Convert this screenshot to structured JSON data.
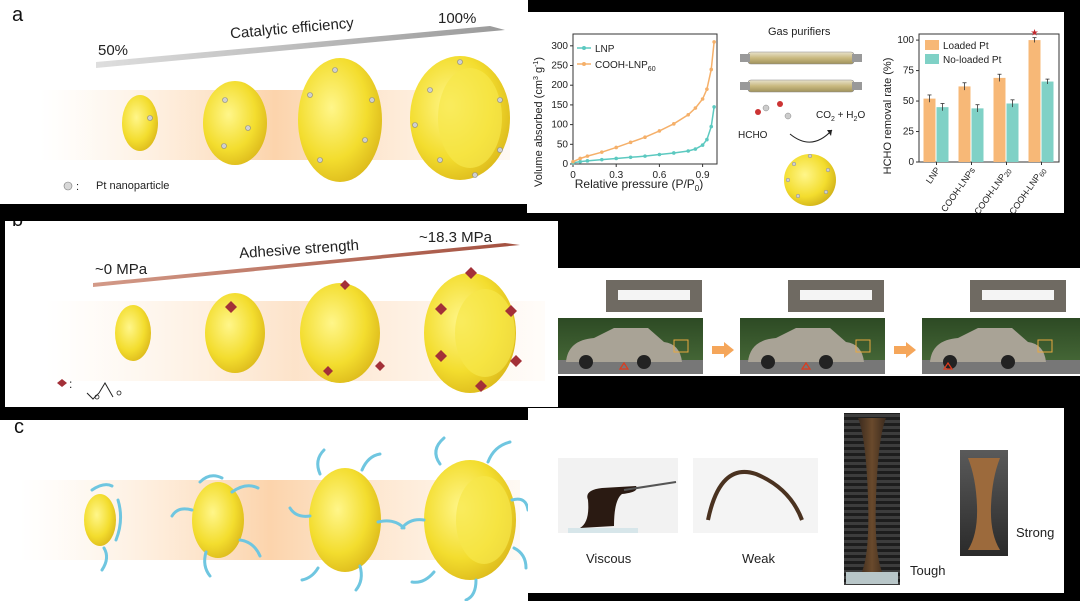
{
  "panel_a": {
    "label": "a",
    "low_label": "50%",
    "high_label": "100%",
    "arrow_label": "Catalytic efficiency",
    "legend_label": "Pt nanoparticle"
  },
  "panel_b": {
    "label": "b",
    "low_label": "~0 MPa",
    "high_label": "~18.3 MPa",
    "arrow_label": "Adhesive strength",
    "legend_separator": ":"
  },
  "panel_c": {
    "label": "c",
    "states": [
      "Viscous",
      "Weak",
      "Tough",
      "Strong"
    ]
  },
  "purifier": {
    "title": "Gas purifiers",
    "reactant": "HCHO",
    "product": "CO",
    "product_sub": "2",
    "product_rest": " + H",
    "product_sub2": "2",
    "product_end": "O"
  },
  "colors": {
    "lnp_teal": "#5cc9c0",
    "cooh_orange": "#f5b06a",
    "loaded_pt": "#f7b877",
    "no_loaded_pt": "#7fd1c6",
    "adhesive_arrow": "#b86a5a",
    "catalytic_arrow": "#a7a7a7",
    "star": "#c0262c"
  },
  "chart_data": [
    {
      "type": "line",
      "xlabel": "Relative pressure (P/P",
      "xlabel_sub": "0",
      "xlabel_end": ")",
      "ylabel": "Volume absorbed (cm",
      "ylabel_sup": "3",
      "ylabel_mid": " g",
      "ylabel_sup2": "-1",
      "ylabel_end": ")",
      "xlim": [
        0,
        1.0
      ],
      "ylim": [
        0,
        330
      ],
      "xticks": [
        "0",
        "0.3",
        "0.6",
        "0.9"
      ],
      "yticks": [
        "0",
        "50",
        "100",
        "150",
        "200",
        "250",
        "300"
      ],
      "series": [
        {
          "name": "LNP",
          "name_sub": "",
          "color": "#5cc9c0",
          "x": [
            0.0,
            0.05,
            0.1,
            0.2,
            0.3,
            0.4,
            0.5,
            0.6,
            0.7,
            0.8,
            0.85,
            0.9,
            0.93,
            0.96,
            0.98
          ],
          "y": [
            3,
            6,
            8,
            11,
            14,
            17,
            20,
            24,
            28,
            33,
            38,
            48,
            62,
            95,
            145
          ]
        },
        {
          "name": "COOH-LNP",
          "name_sub": "60",
          "color": "#f5b06a",
          "x": [
            0.0,
            0.05,
            0.1,
            0.2,
            0.3,
            0.4,
            0.5,
            0.6,
            0.7,
            0.8,
            0.85,
            0.9,
            0.93,
            0.96,
            0.98
          ],
          "y": [
            6,
            14,
            20,
            30,
            42,
            55,
            68,
            84,
            102,
            125,
            142,
            165,
            190,
            240,
            310
          ]
        }
      ]
    },
    {
      "type": "bar",
      "ylabel": "HCHO removal rate (%)",
      "ylim": [
        0,
        105
      ],
      "yticks": [
        "0",
        "25",
        "50",
        "75",
        "100"
      ],
      "categories": [
        {
          "name": "LNP",
          "sub": ""
        },
        {
          "name": "COOH-LNPs",
          "sub": ""
        },
        {
          "name": "COOH-LNP",
          "sub": "20"
        },
        {
          "name": "COOH-LNP",
          "sub": "60"
        }
      ],
      "series": [
        {
          "name": "Loaded Pt",
          "color": "#f7b877",
          "values": [
            52,
            62,
            69,
            100
          ],
          "errors": [
            3,
            3,
            3,
            2
          ]
        },
        {
          "name": "No-loaded Pt",
          "color": "#7fd1c6",
          "values": [
            45,
            44,
            48,
            66
          ],
          "errors": [
            3,
            3,
            3,
            2
          ]
        }
      ],
      "marker": "★"
    }
  ]
}
